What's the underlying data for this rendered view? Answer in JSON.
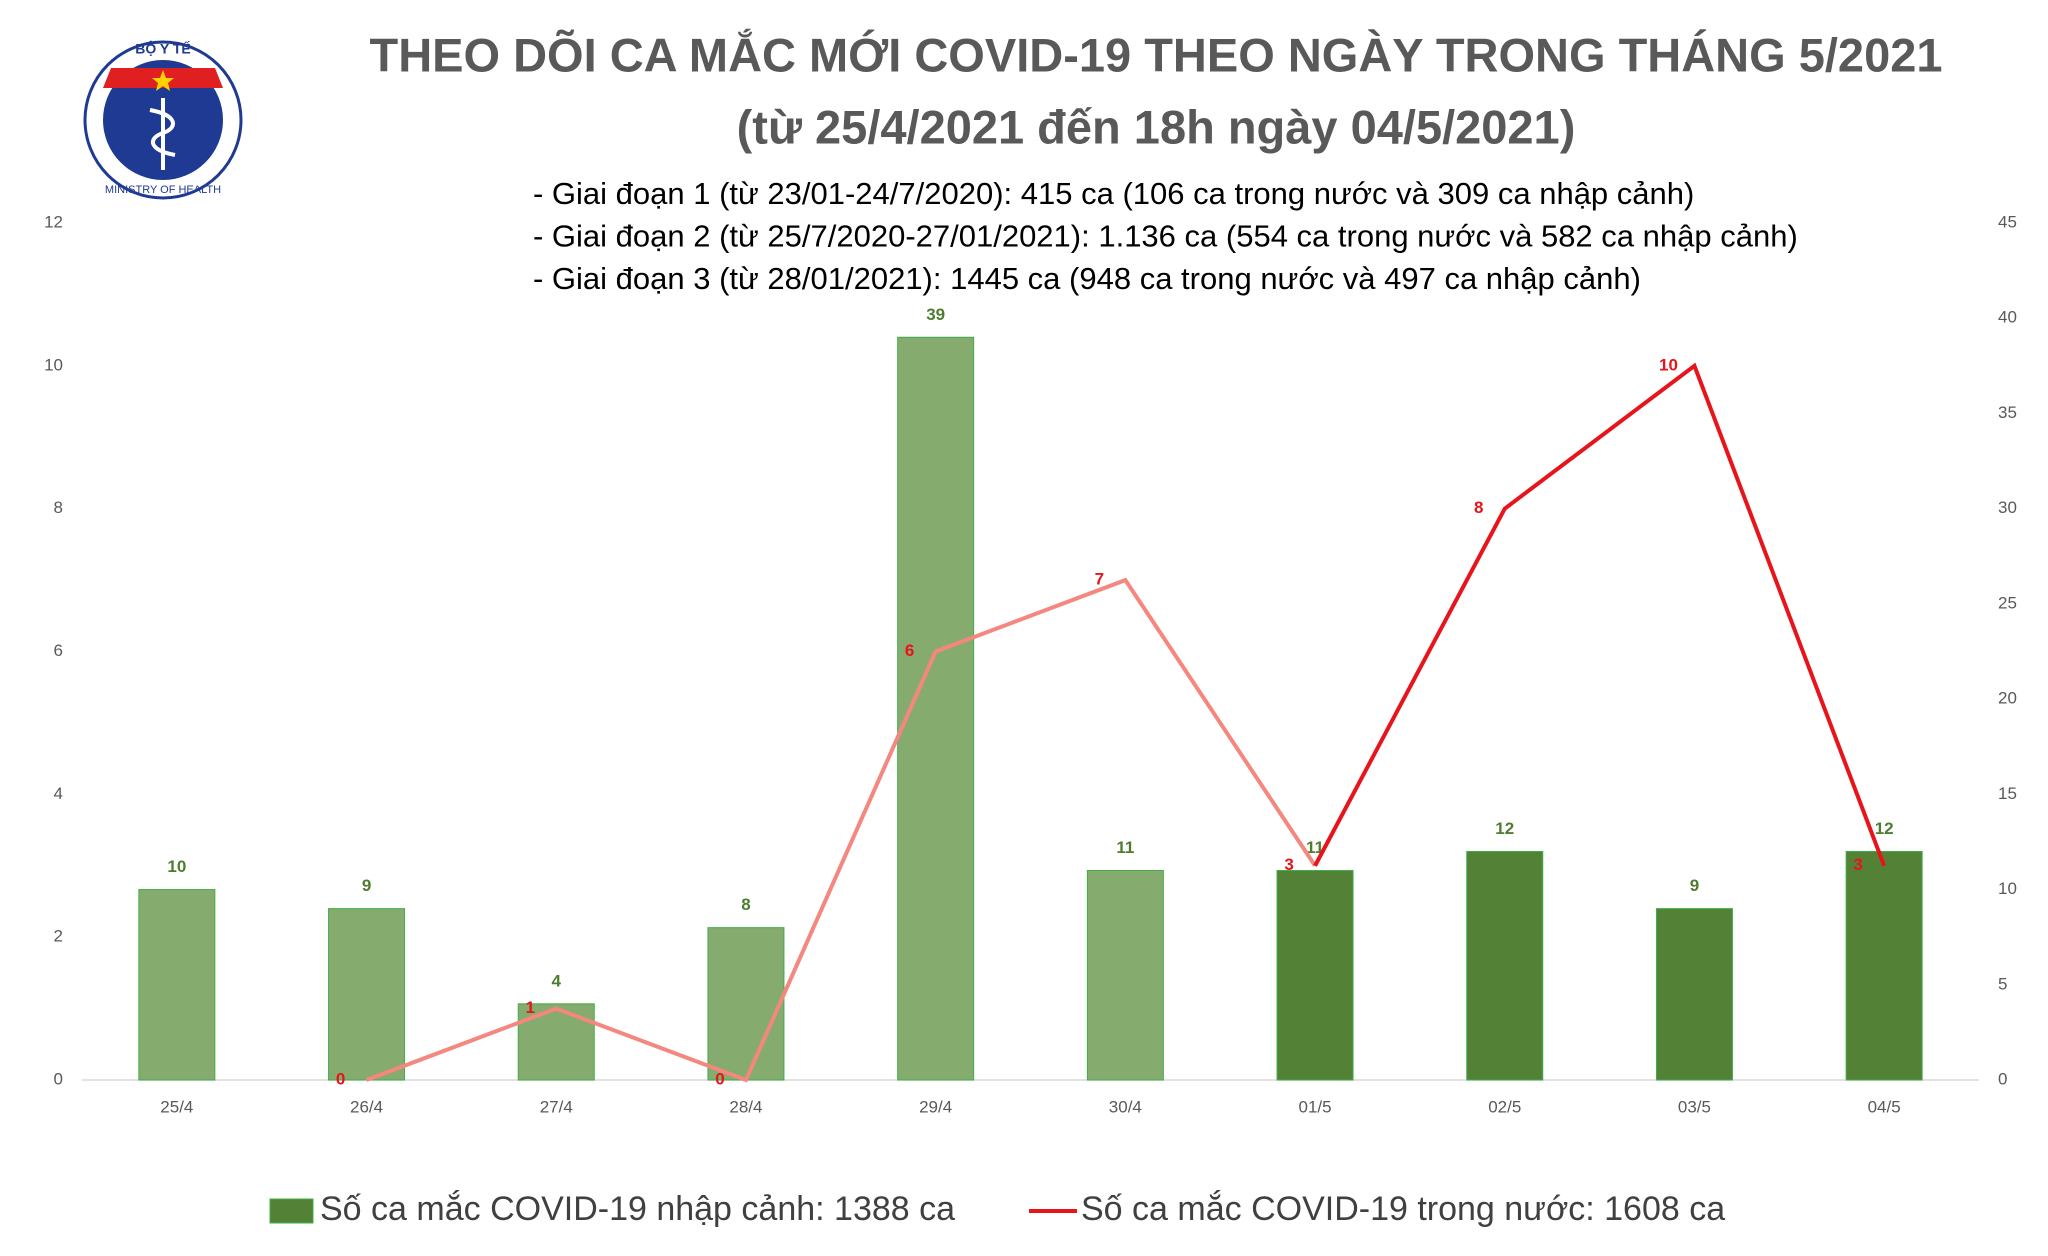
{
  "logo": {
    "top": "BỘ Y TẾ",
    "bottom": "MINISTRY OF HEALTH"
  },
  "chart_data": {
    "type": "bar-line",
    "title": "THEO DÕI CA MẮC MỚI COVID-19 THEO NGÀY TRONG THÁNG 5/2021",
    "subtitle": "(từ 25/4/2021 đến 18h ngày 04/5/2021)",
    "notes": [
      "- Giai đoạn 1 (từ 23/01-24/7/2020): 415 ca (106 ca trong nước và 309 ca nhập cảnh)",
      "- Giai đoạn 2 (từ 25/7/2020-27/01/2021): 1.136 ca (554 ca trong nước và 582 ca nhập cảnh)",
      "- Giai đoạn 3 (từ 28/01/2021): 1445 ca (948 ca trong nước và 497 ca nhập cảnh)"
    ],
    "categories": [
      "25/4",
      "26/4",
      "27/4",
      "28/4",
      "29/4",
      "30/4",
      "01/5",
      "02/5",
      "03/5",
      "04/5"
    ],
    "series": [
      {
        "name": "Số ca mắc COVID-19 nhập cảnh: 1388 ca",
        "type": "bar",
        "axis": "y2",
        "color": "#538135",
        "colors": [
          "#86ab6e",
          "#86ab6e",
          "#86ab6e",
          "#86ab6e",
          "#86ab6e",
          "#86ab6e",
          "#538135",
          "#538135",
          "#538135",
          "#538135"
        ],
        "values": [
          10,
          9,
          4,
          8,
          39,
          11,
          11,
          12,
          9,
          12
        ]
      },
      {
        "name": "Số ca mắc COVID-19 trong nước: 1608 ca",
        "type": "line",
        "axis": "y",
        "color": "#e8141b",
        "colors": [
          "#f4877f",
          "#f4877f",
          "#f4877f",
          "#f4877f",
          "#f4877f",
          "#f4877f",
          "#f4877f",
          "#e8141b",
          "#e8141b",
          "#e8141b"
        ],
        "values": [
          null,
          0,
          1,
          0,
          6,
          7,
          3,
          8,
          10,
          3
        ]
      }
    ],
    "ylim": [
      0,
      12
    ],
    "yticks": [
      0,
      2,
      4,
      6,
      8,
      10,
      12
    ],
    "y2lim": [
      0,
      45
    ],
    "y2ticks": [
      0,
      5,
      10,
      15,
      20,
      25,
      30,
      35,
      40,
      45
    ],
    "grid": false,
    "legend": "bottom"
  }
}
